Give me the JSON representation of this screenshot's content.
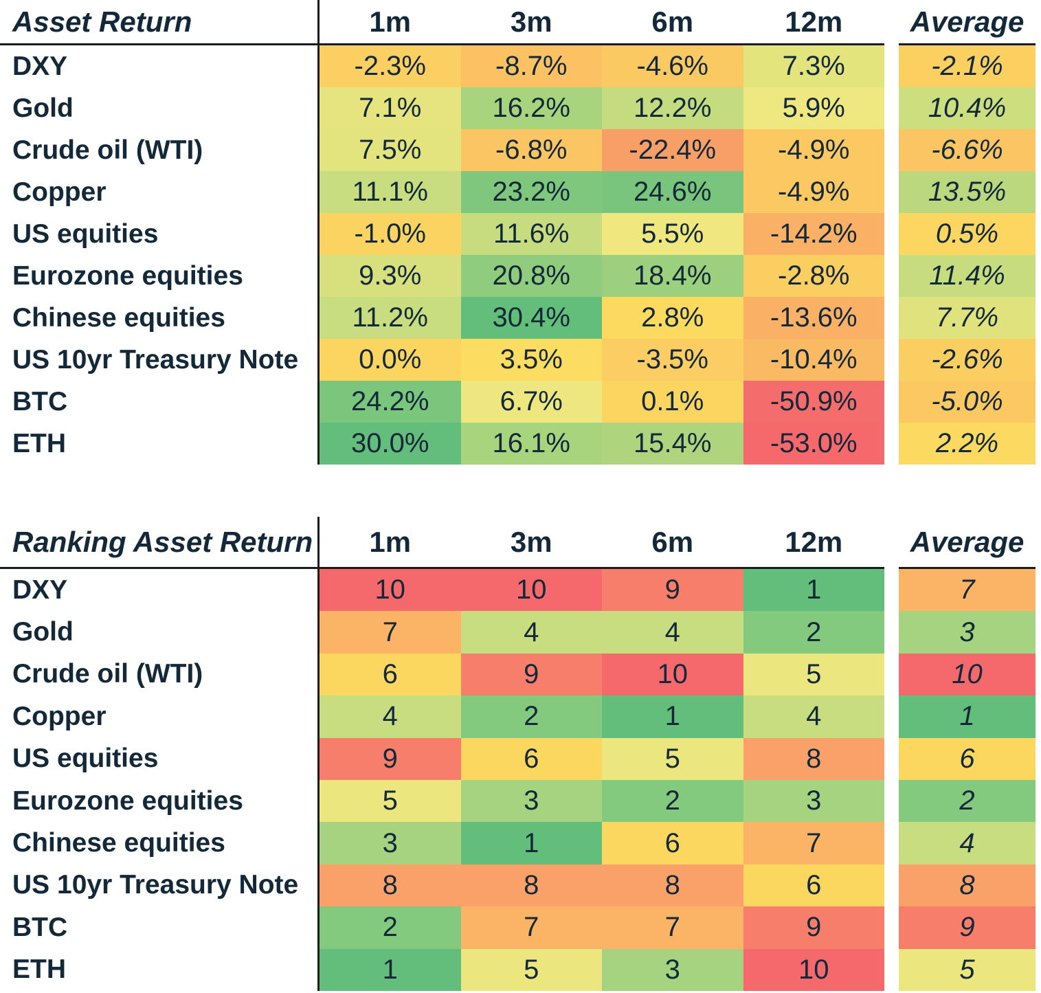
{
  "colors": {
    "background": "#FFFFFF",
    "text": "#132838",
    "rule_line": "#191C1F",
    "scale_min_red": "#F5696C",
    "scale_mid_gold": "#FCD75F",
    "scale_mid_lemon": "#ECE67E",
    "scale_max_green": "#63BE7B"
  },
  "table1": {
    "title": "Asset Return",
    "columns": [
      "1m",
      "3m",
      "6m",
      "12m"
    ],
    "avg_label": "Average",
    "rows": [
      {
        "label": "DXY",
        "cells": [
          {
            "v": "-2.3%",
            "c": "#FBCF61"
          },
          {
            "v": "-8.7%",
            "c": "#FBC163"
          },
          {
            "v": "-4.6%",
            "c": "#FBC962"
          },
          {
            "v": "7.3%",
            "c": "#E4E47D"
          }
        ],
        "avg": {
          "v": "-2.1%",
          "c": "#FBD061"
        }
      },
      {
        "label": "Gold",
        "cells": [
          {
            "v": "7.1%",
            "c": "#E5E47E"
          },
          {
            "v": "16.2%",
            "c": "#A9D47E"
          },
          {
            "v": "12.2%",
            "c": "#C4DB7F"
          },
          {
            "v": "5.9%",
            "c": "#EFE780"
          }
        ],
        "avg": {
          "v": "10.4%",
          "c": "#CCDE7E"
        }
      },
      {
        "label": "Crude oil (WTI)",
        "cells": [
          {
            "v": "7.5%",
            "c": "#E3E47D"
          },
          {
            "v": "-6.8%",
            "c": "#FBC563"
          },
          {
            "v": "-22.4%",
            "c": "#F89E67"
          },
          {
            "v": "-4.9%",
            "c": "#FBC862"
          }
        ],
        "avg": {
          "v": "-6.6%",
          "c": "#FBC563"
        }
      },
      {
        "label": "Copper",
        "cells": [
          {
            "v": "11.1%",
            "c": "#C8DD7F"
          },
          {
            "v": "23.2%",
            "c": "#7EC77D"
          },
          {
            "v": "24.6%",
            "c": "#79C57D"
          },
          {
            "v": "-4.9%",
            "c": "#FBC862"
          }
        ],
        "avg": {
          "v": "13.5%",
          "c": "#BBD87E"
        }
      },
      {
        "label": "US equities",
        "cells": [
          {
            "v": "-1.0%",
            "c": "#FBD360"
          },
          {
            "v": "11.6%",
            "c": "#C6DC7F"
          },
          {
            "v": "5.5%",
            "c": "#F0E77F"
          },
          {
            "v": "-14.2%",
            "c": "#FAB065"
          }
        ],
        "avg": {
          "v": "0.5%",
          "c": "#FCD660"
        }
      },
      {
        "label": "Eurozone equities",
        "cells": [
          {
            "v": "9.3%",
            "c": "#D8E07E"
          },
          {
            "v": "20.8%",
            "c": "#90CC7D"
          },
          {
            "v": "18.4%",
            "c": "#9DD07E"
          },
          {
            "v": "-2.8%",
            "c": "#FBCE61"
          }
        ],
        "avg": {
          "v": "11.4%",
          "c": "#C7DC7F"
        }
      },
      {
        "label": "Chinese equities",
        "cells": [
          {
            "v": "11.2%",
            "c": "#C8DD7F"
          },
          {
            "v": "30.4%",
            "c": "#63BE7B"
          },
          {
            "v": "2.8%",
            "c": "#FCDA60"
          },
          {
            "v": "-13.6%",
            "c": "#FAB165"
          }
        ],
        "avg": {
          "v": "7.7%",
          "c": "#E0E37D"
        }
      },
      {
        "label": "US 10yr Treasury Note",
        "cells": [
          {
            "v": "0.0%",
            "c": "#FCD560"
          },
          {
            "v": "3.5%",
            "c": "#FCDC61"
          },
          {
            "v": "-3.5%",
            "c": "#FBCD62"
          },
          {
            "v": "-10.4%",
            "c": "#FABA64"
          }
        ],
        "avg": {
          "v": "-2.6%",
          "c": "#FBCE61"
        }
      },
      {
        "label": "BTC",
        "cells": [
          {
            "v": "24.2%",
            "c": "#7BC67D"
          },
          {
            "v": "6.7%",
            "c": "#EEE77F"
          },
          {
            "v": "0.1%",
            "c": "#FCD560"
          },
          {
            "v": "-50.9%",
            "c": "#F56C6C"
          }
        ],
        "avg": {
          "v": "-5.0%",
          "c": "#FBC862"
        }
      },
      {
        "label": "ETH",
        "cells": [
          {
            "v": "30.0%",
            "c": "#64BE7B"
          },
          {
            "v": "16.1%",
            "c": "#A9D47E"
          },
          {
            "v": "15.4%",
            "c": "#AED57E"
          },
          {
            "v": "-53.0%",
            "c": "#F5696C"
          }
        ],
        "avg": {
          "v": "2.2%",
          "c": "#FCD960"
        }
      }
    ]
  },
  "table2": {
    "title": "Ranking Asset Return",
    "columns": [
      "1m",
      "3m",
      "6m",
      "12m"
    ],
    "avg_label": "Average",
    "rows": [
      {
        "label": "DXY",
        "cells": [
          {
            "v": "10",
            "c": "#F5696C"
          },
          {
            "v": "10",
            "c": "#F5696C"
          },
          {
            "v": "9",
            "c": "#F87E6C"
          },
          {
            "v": "1",
            "c": "#63BE7B"
          }
        ],
        "avg": {
          "v": "7",
          "c": "#FBB365"
        }
      },
      {
        "label": "Gold",
        "cells": [
          {
            "v": "7",
            "c": "#FBB365"
          },
          {
            "v": "4",
            "c": "#C8DD80"
          },
          {
            "v": "4",
            "c": "#C8DD80"
          },
          {
            "v": "2",
            "c": "#84CA7E"
          }
        ],
        "avg": {
          "v": "3",
          "c": "#A5D37F"
        }
      },
      {
        "label": "Crude oil (WTI)",
        "cells": [
          {
            "v": "6",
            "c": "#FCD75F"
          },
          {
            "v": "9",
            "c": "#F87E6C"
          },
          {
            "v": "10",
            "c": "#F5696C"
          },
          {
            "v": "5",
            "c": "#ECE67E"
          }
        ],
        "avg": {
          "v": "10",
          "c": "#F5696C"
        }
      },
      {
        "label": "Copper",
        "cells": [
          {
            "v": "4",
            "c": "#C8DD80"
          },
          {
            "v": "2",
            "c": "#84CA7E"
          },
          {
            "v": "1",
            "c": "#63BE7B"
          },
          {
            "v": "4",
            "c": "#C8DD80"
          }
        ],
        "avg": {
          "v": "1",
          "c": "#63BE7B"
        }
      },
      {
        "label": "US equities",
        "cells": [
          {
            "v": "9",
            "c": "#F87E6C"
          },
          {
            "v": "6",
            "c": "#FCD75F"
          },
          {
            "v": "5",
            "c": "#ECE67E"
          },
          {
            "v": "8",
            "c": "#F9A169"
          }
        ],
        "avg": {
          "v": "6",
          "c": "#FCD75F"
        }
      },
      {
        "label": "Eurozone equities",
        "cells": [
          {
            "v": "5",
            "c": "#ECE67E"
          },
          {
            "v": "3",
            "c": "#A5D37F"
          },
          {
            "v": "2",
            "c": "#84CA7E"
          },
          {
            "v": "3",
            "c": "#A5D37F"
          }
        ],
        "avg": {
          "v": "2",
          "c": "#84CA7E"
        }
      },
      {
        "label": "Chinese equities",
        "cells": [
          {
            "v": "3",
            "c": "#A5D37F"
          },
          {
            "v": "1",
            "c": "#63BE7B"
          },
          {
            "v": "6",
            "c": "#FCD75F"
          },
          {
            "v": "7",
            "c": "#FBB365"
          }
        ],
        "avg": {
          "v": "4",
          "c": "#C8DD80"
        }
      },
      {
        "label": "US 10yr Treasury Note",
        "cells": [
          {
            "v": "8",
            "c": "#F9A169"
          },
          {
            "v": "8",
            "c": "#F9A169"
          },
          {
            "v": "8",
            "c": "#F9A169"
          },
          {
            "v": "6",
            "c": "#FCD75F"
          }
        ],
        "avg": {
          "v": "8",
          "c": "#F9A169"
        }
      },
      {
        "label": "BTC",
        "cells": [
          {
            "v": "2",
            "c": "#84CA7E"
          },
          {
            "v": "7",
            "c": "#FBB365"
          },
          {
            "v": "7",
            "c": "#FBB365"
          },
          {
            "v": "9",
            "c": "#F87E6C"
          }
        ],
        "avg": {
          "v": "9",
          "c": "#F87E6C"
        }
      },
      {
        "label": "ETH",
        "cells": [
          {
            "v": "1",
            "c": "#63BE7B"
          },
          {
            "v": "5",
            "c": "#ECE67E"
          },
          {
            "v": "3",
            "c": "#A5D37F"
          },
          {
            "v": "10",
            "c": "#F5696C"
          }
        ],
        "avg": {
          "v": "5",
          "c": "#ECE67E"
        }
      }
    ]
  },
  "chart_data": [
    {
      "type": "heatmap",
      "title": "Asset Return",
      "columns": [
        "1m",
        "3m",
        "6m",
        "12m",
        "Average"
      ],
      "rows": [
        "DXY",
        "Gold",
        "Crude oil (WTI)",
        "Copper",
        "US equities",
        "Eurozone equities",
        "Chinese equities",
        "US 10yr Treasury Note",
        "BTC",
        "ETH"
      ],
      "unit": "%",
      "values": [
        [
          -2.3,
          -8.7,
          -4.6,
          7.3,
          -2.1
        ],
        [
          7.1,
          16.2,
          12.2,
          5.9,
          10.4
        ],
        [
          7.5,
          -6.8,
          -22.4,
          -4.9,
          -6.6
        ],
        [
          11.1,
          23.2,
          24.6,
          -4.9,
          13.5
        ],
        [
          -1.0,
          11.6,
          5.5,
          -14.2,
          0.5
        ],
        [
          9.3,
          20.8,
          18.4,
          -2.8,
          11.4
        ],
        [
          11.2,
          30.4,
          2.8,
          -13.6,
          7.7
        ],
        [
          0.0,
          3.5,
          -3.5,
          -10.4,
          -2.6
        ],
        [
          24.2,
          6.7,
          0.1,
          -50.9,
          -5.0
        ],
        [
          30.0,
          16.1,
          15.4,
          -53.0,
          2.2
        ]
      ],
      "colorscale": "red-yellow-green (low=red, high=green)"
    },
    {
      "type": "heatmap",
      "title": "Ranking Asset Return",
      "columns": [
        "1m",
        "3m",
        "6m",
        "12m",
        "Average"
      ],
      "rows": [
        "DXY",
        "Gold",
        "Crude oil (WTI)",
        "Copper",
        "US equities",
        "Eurozone equities",
        "Chinese equities",
        "US 10yr Treasury Note",
        "BTC",
        "ETH"
      ],
      "values": [
        [
          10,
          10,
          9,
          1,
          7
        ],
        [
          7,
          4,
          4,
          2,
          3
        ],
        [
          6,
          9,
          10,
          5,
          10
        ],
        [
          4,
          2,
          1,
          4,
          1
        ],
        [
          9,
          6,
          5,
          8,
          6
        ],
        [
          5,
          3,
          2,
          3,
          2
        ],
        [
          3,
          1,
          6,
          7,
          4
        ],
        [
          8,
          8,
          8,
          6,
          8
        ],
        [
          2,
          7,
          7,
          9,
          9
        ],
        [
          1,
          5,
          3,
          10,
          5
        ]
      ],
      "colorscale": "red-yellow-green (rank 1=green, rank 10=red)"
    }
  ]
}
